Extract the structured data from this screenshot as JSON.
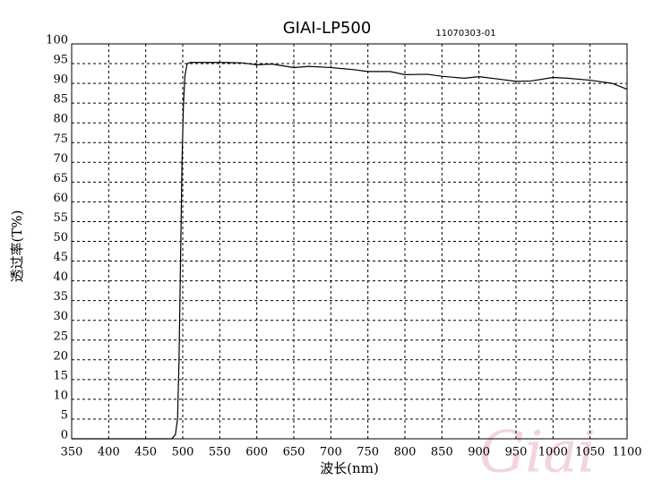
{
  "chart_data": {
    "type": "line",
    "title": "GIAI-LP500",
    "subtitle": "11070303-01",
    "x_label": "波长(nm)",
    "y_label": "透过率(T%)",
    "watermark": "Giai",
    "xlim": [
      350,
      1100
    ],
    "ylim": [
      0,
      100
    ],
    "xticks": [
      350,
      400,
      450,
      500,
      550,
      600,
      650,
      700,
      750,
      800,
      850,
      900,
      950,
      1000,
      1050,
      1100
    ],
    "yticks": [
      0,
      5,
      10,
      15,
      20,
      25,
      30,
      35,
      40,
      45,
      50,
      55,
      60,
      65,
      70,
      75,
      80,
      85,
      90,
      95,
      100
    ],
    "grid": true,
    "series": [
      {
        "name": "T%",
        "color": "#000000",
        "x": [
          350,
          400,
          450,
          485,
          490,
          493,
          495,
          497,
          499,
          501,
          503,
          506,
          510,
          550,
          580,
          600,
          620,
          640,
          650,
          670,
          700,
          730,
          750,
          780,
          800,
          830,
          850,
          880,
          900,
          930,
          950,
          970,
          1000,
          1020,
          1050,
          1080,
          1100
        ],
        "values": [
          0,
          0,
          0,
          0,
          1,
          5,
          20,
          45,
          70,
          85,
          92,
          95,
          95.3,
          95.3,
          95.2,
          94.7,
          94.9,
          94.3,
          94,
          94.3,
          94,
          93.5,
          93,
          93,
          92.2,
          92.3,
          91.8,
          91.3,
          91.7,
          91,
          90.5,
          90.6,
          91.5,
          91.3,
          90.8,
          90,
          88.5
        ]
      }
    ]
  }
}
